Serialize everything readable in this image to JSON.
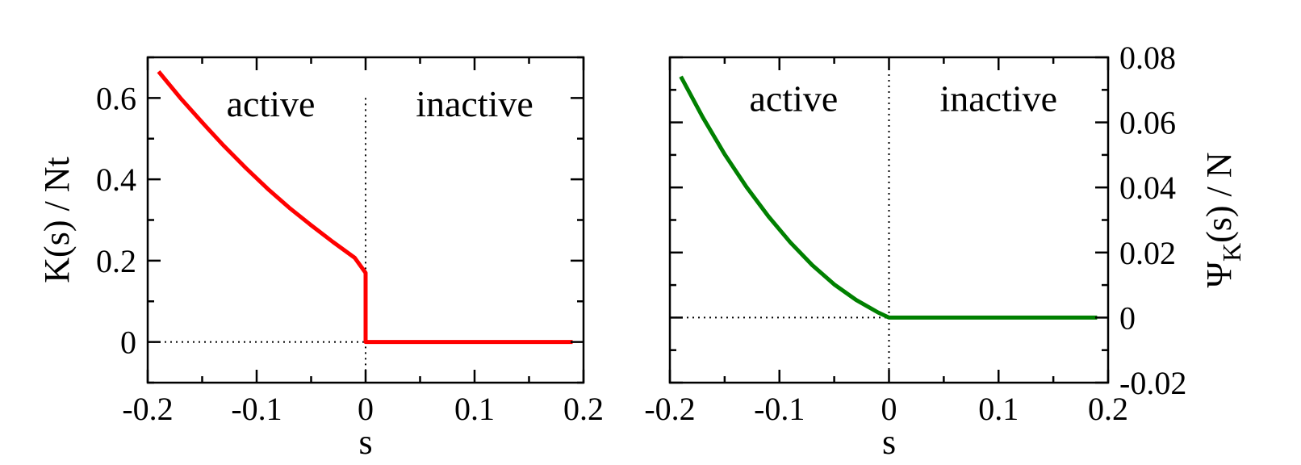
{
  "chart_data": [
    {
      "type": "line",
      "xlabel": "s",
      "ylabel": "K(s) / Nt",
      "xlim": [
        -0.2,
        0.2
      ],
      "ylim": [
        -0.1,
        0.7
      ],
      "xticks": [
        -0.2,
        -0.1,
        0,
        0.1,
        0.2
      ],
      "xtick_labels": [
        "-0.2",
        "-0.1",
        "0",
        "0.1",
        "0.2"
      ],
      "yticks": [
        0,
        0.2,
        0.4,
        0.6
      ],
      "ytick_labels": [
        "0",
        "0.2",
        "0.4",
        "0.6"
      ],
      "y_axis_side": "left",
      "annotations": [
        {
          "text": "active",
          "x": -0.087,
          "y": 0.555
        },
        {
          "text": "inactive",
          "x": 0.1,
          "y": 0.555
        }
      ],
      "reference_lines": [
        {
          "orientation": "vertical",
          "value": 0,
          "from": -0.1,
          "to": 0.6,
          "style": "dotted"
        },
        {
          "orientation": "horizontal",
          "value": 0,
          "from": -0.2,
          "to": 0,
          "style": "dotted"
        }
      ],
      "series": [
        {
          "color": "#ff0000",
          "x": [
            -0.19,
            -0.17,
            -0.15,
            -0.13,
            -0.11,
            -0.09,
            -0.07,
            -0.05,
            -0.03,
            -0.01,
            0,
            0,
            0.05,
            0.1,
            0.15,
            0.19
          ],
          "y": [
            0.665,
            0.6,
            0.54,
            0.482,
            0.428,
            0.377,
            0.33,
            0.287,
            0.246,
            0.207,
            0.17,
            0,
            0,
            0,
            0,
            0
          ]
        }
      ]
    },
    {
      "type": "line",
      "xlabel": "s",
      "ylabel": "ΨK(s) / N",
      "xlim": [
        -0.2,
        0.2
      ],
      "ylim": [
        -0.02,
        0.08
      ],
      "xticks": [
        -0.2,
        -0.1,
        0,
        0.1,
        0.2
      ],
      "xtick_labels": [
        "-0.2",
        "-0.1",
        "0",
        "0.1",
        "0.2"
      ],
      "yticks": [
        -0.02,
        0,
        0.02,
        0.04,
        0.06,
        0.08
      ],
      "ytick_labels": [
        "-0.02",
        "0",
        "0.02",
        "0.04",
        "0.06",
        "0.08"
      ],
      "y_axis_side": "right",
      "annotations": [
        {
          "text": "active",
          "x": -0.087,
          "y": 0.0635
        },
        {
          "text": "inactive",
          "x": 0.1,
          "y": 0.0635
        }
      ],
      "reference_lines": [
        {
          "orientation": "vertical",
          "value": 0,
          "from": -0.02,
          "to": 0.08,
          "style": "dotted"
        },
        {
          "orientation": "horizontal",
          "value": 0,
          "from": -0.2,
          "to": 0,
          "style": "dotted"
        }
      ],
      "series": [
        {
          "color": "#008000",
          "x": [
            -0.19,
            -0.17,
            -0.15,
            -0.13,
            -0.11,
            -0.09,
            -0.07,
            -0.05,
            -0.03,
            -0.01,
            0,
            0.05,
            0.1,
            0.15,
            0.19
          ],
          "y": [
            0.0741,
            0.0616,
            0.0502,
            0.0401,
            0.0311,
            0.0231,
            0.0161,
            0.0102,
            0.0054,
            0.0016,
            0,
            0,
            0,
            0,
            0
          ]
        }
      ]
    }
  ]
}
